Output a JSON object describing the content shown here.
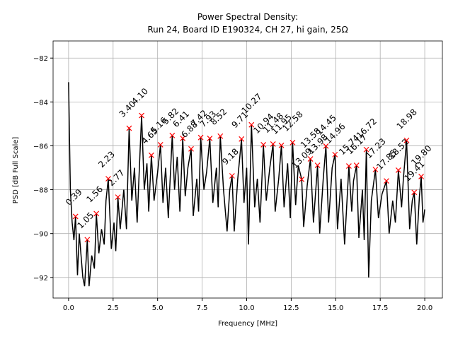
{
  "chart_data": {
    "type": "line",
    "title": "Power Spectral Density:",
    "subtitle": "Run 24, Board ID E190324, CH 27, hi gain, 25Ω",
    "x_label": "Frequency [MHz]",
    "y_label": "PSD [dB Full Scale]",
    "xlim": [
      -0.87,
      20.99
    ],
    "ylim": [
      -92.94,
      -81.22
    ],
    "xticks": [
      {
        "value": 0,
        "label": "0.0"
      },
      2.5,
      {
        "value": 5,
        "label": "5.0"
      },
      7.5,
      {
        "value": 10,
        "label": "10.0"
      },
      12.5,
      {
        "value": 15,
        "label": "15.0"
      },
      17.5,
      {
        "value": 20,
        "label": "20.0"
      }
    ],
    "yticks": [
      {
        "value": -92,
        "label": "−92"
      },
      {
        "value": -90,
        "label": "−90"
      },
      {
        "value": -88,
        "label": "−88"
      },
      {
        "value": -86,
        "label": "−86"
      },
      {
        "value": -84,
        "label": "−84"
      },
      {
        "value": -82,
        "label": "−82"
      }
    ],
    "grid": true,
    "series": [
      {
        "color": "#000000",
        "x": [
          0.0,
          0.1,
          0.2,
          0.3,
          0.39,
          0.5,
          0.6,
          0.7,
          0.8,
          0.9,
          1.0,
          1.05,
          1.15,
          1.3,
          1.45,
          1.56,
          1.7,
          1.85,
          2.0,
          2.1,
          2.23,
          2.4,
          2.55,
          2.65,
          2.77,
          2.9,
          3.1,
          3.25,
          3.4,
          3.55,
          3.7,
          3.85,
          3.95,
          4.1,
          4.25,
          4.4,
          4.5,
          4.65,
          4.8,
          5.0,
          5.16,
          5.3,
          5.45,
          5.6,
          5.82,
          5.95,
          6.1,
          6.25,
          6.41,
          6.55,
          6.7,
          6.88,
          7.0,
          7.2,
          7.3,
          7.42,
          7.6,
          7.75,
          7.93,
          8.1,
          8.3,
          8.4,
          8.52,
          8.7,
          8.9,
          9.05,
          9.18,
          9.3,
          9.5,
          9.71,
          9.85,
          10.0,
          10.1,
          10.27,
          10.45,
          10.6,
          10.75,
          10.94,
          11.1,
          11.3,
          11.48,
          11.6,
          11.8,
          11.95,
          12.1,
          12.3,
          12.45,
          12.58,
          12.75,
          12.9,
          13.09,
          13.2,
          13.4,
          13.58,
          13.75,
          13.98,
          14.1,
          14.3,
          14.45,
          14.6,
          14.8,
          14.96,
          15.1,
          15.3,
          15.5,
          15.74,
          15.9,
          16.0,
          16.17,
          16.3,
          16.5,
          16.6,
          16.72,
          16.85,
          17.0,
          17.23,
          17.4,
          17.6,
          17.85,
          18.0,
          18.2,
          18.35,
          18.52,
          18.7,
          18.8,
          18.98,
          19.15,
          19.3,
          19.41,
          19.55,
          19.7,
          19.8,
          19.9,
          20.0
        ],
        "values": [
          -83.1,
          -88.0,
          -89.5,
          -90.3,
          -89.22,
          -91.9,
          -90.0,
          -91.0,
          -92.0,
          -92.4,
          -91.0,
          -90.28,
          -92.4,
          -91.0,
          -91.6,
          -89.09,
          -90.9,
          -89.8,
          -90.5,
          -88.5,
          -87.5,
          -90.7,
          -89.5,
          -90.8,
          -88.34,
          -89.8,
          -88.0,
          -89.8,
          -85.2,
          -88.5,
          -87.0,
          -89.5,
          -87.5,
          -84.62,
          -88.0,
          -86.8,
          -89.0,
          -86.43,
          -88.5,
          -87.2,
          -85.95,
          -88.6,
          -87.0,
          -89.3,
          -85.53,
          -88.0,
          -86.5,
          -89.0,
          -85.66,
          -88.3,
          -87.0,
          -86.14,
          -89.2,
          -87.5,
          -89.0,
          -85.62,
          -88.0,
          -87.2,
          -85.66,
          -88.6,
          -87.0,
          -88.8,
          -85.56,
          -88.0,
          -89.9,
          -88.0,
          -87.37,
          -89.9,
          -87.5,
          -85.69,
          -88.6,
          -87.0,
          -90.5,
          -85.04,
          -88.8,
          -87.5,
          -89.5,
          -85.95,
          -88.5,
          -87.0,
          -85.92,
          -89.0,
          -87.5,
          -85.98,
          -88.8,
          -86.8,
          -89.3,
          -85.85,
          -88.7,
          -86.9,
          -87.53,
          -89.7,
          -87.8,
          -86.6,
          -89.5,
          -86.89,
          -90.0,
          -87.5,
          -86.01,
          -89.5,
          -87.0,
          -86.4,
          -89.8,
          -87.5,
          -90.5,
          -86.92,
          -89.0,
          -87.6,
          -86.89,
          -90.2,
          -88.0,
          -90.3,
          -86.17,
          -92.0,
          -88.5,
          -87.08,
          -89.3,
          -88.2,
          -87.6,
          -90.0,
          -88.5,
          -89.5,
          -87.11,
          -88.8,
          -87.5,
          -85.75,
          -89.8,
          -88.5,
          -88.12,
          -90.5,
          -88.3,
          -87.4,
          -89.5,
          -88.9
        ]
      },
      {
        "color": "#ff0000",
        "marker": "x",
        "x": [
          0.39,
          1.05,
          1.56,
          2.23,
          2.77,
          3.4,
          4.1,
          4.65,
          5.16,
          5.82,
          6.41,
          6.88,
          7.42,
          7.93,
          8.52,
          9.18,
          9.71,
          10.27,
          10.94,
          11.48,
          11.95,
          12.58,
          13.09,
          13.58,
          13.98,
          14.45,
          14.96,
          15.74,
          16.17,
          16.72,
          17.23,
          17.85,
          18.52,
          18.98,
          19.41,
          19.8
        ],
        "values": [
          -89.22,
          -90.28,
          -89.09,
          -87.5,
          -88.34,
          -85.2,
          -84.62,
          -86.43,
          -85.95,
          -85.53,
          -85.66,
          -86.14,
          -85.62,
          -85.66,
          -85.56,
          -87.37,
          -85.69,
          -85.04,
          -85.95,
          -85.92,
          -85.98,
          -85.85,
          -87.53,
          -86.6,
          -86.89,
          -86.01,
          -86.4,
          -86.92,
          -86.89,
          -86.17,
          -87.08,
          -87.6,
          -87.11,
          -85.75,
          -88.12,
          -87.4
        ],
        "labels": [
          "0.39",
          "1.05",
          "1.56",
          "2.23",
          "2.77",
          "3.40",
          "4.10",
          "4.65",
          "5.16",
          "5.82",
          "6.41",
          "6.88",
          "7.42",
          "7.93",
          "8.52",
          "9.18",
          "9.71",
          "10.27",
          "10.94",
          "11.48",
          "11.95",
          "12.58",
          "13.09",
          "13.58",
          "13.98",
          "14.45",
          "14.96",
          "15.74",
          "16.17",
          "16.72",
          "17.23",
          "17.85",
          "18.52",
          "18.98",
          "19.41",
          "19.80"
        ]
      }
    ]
  }
}
